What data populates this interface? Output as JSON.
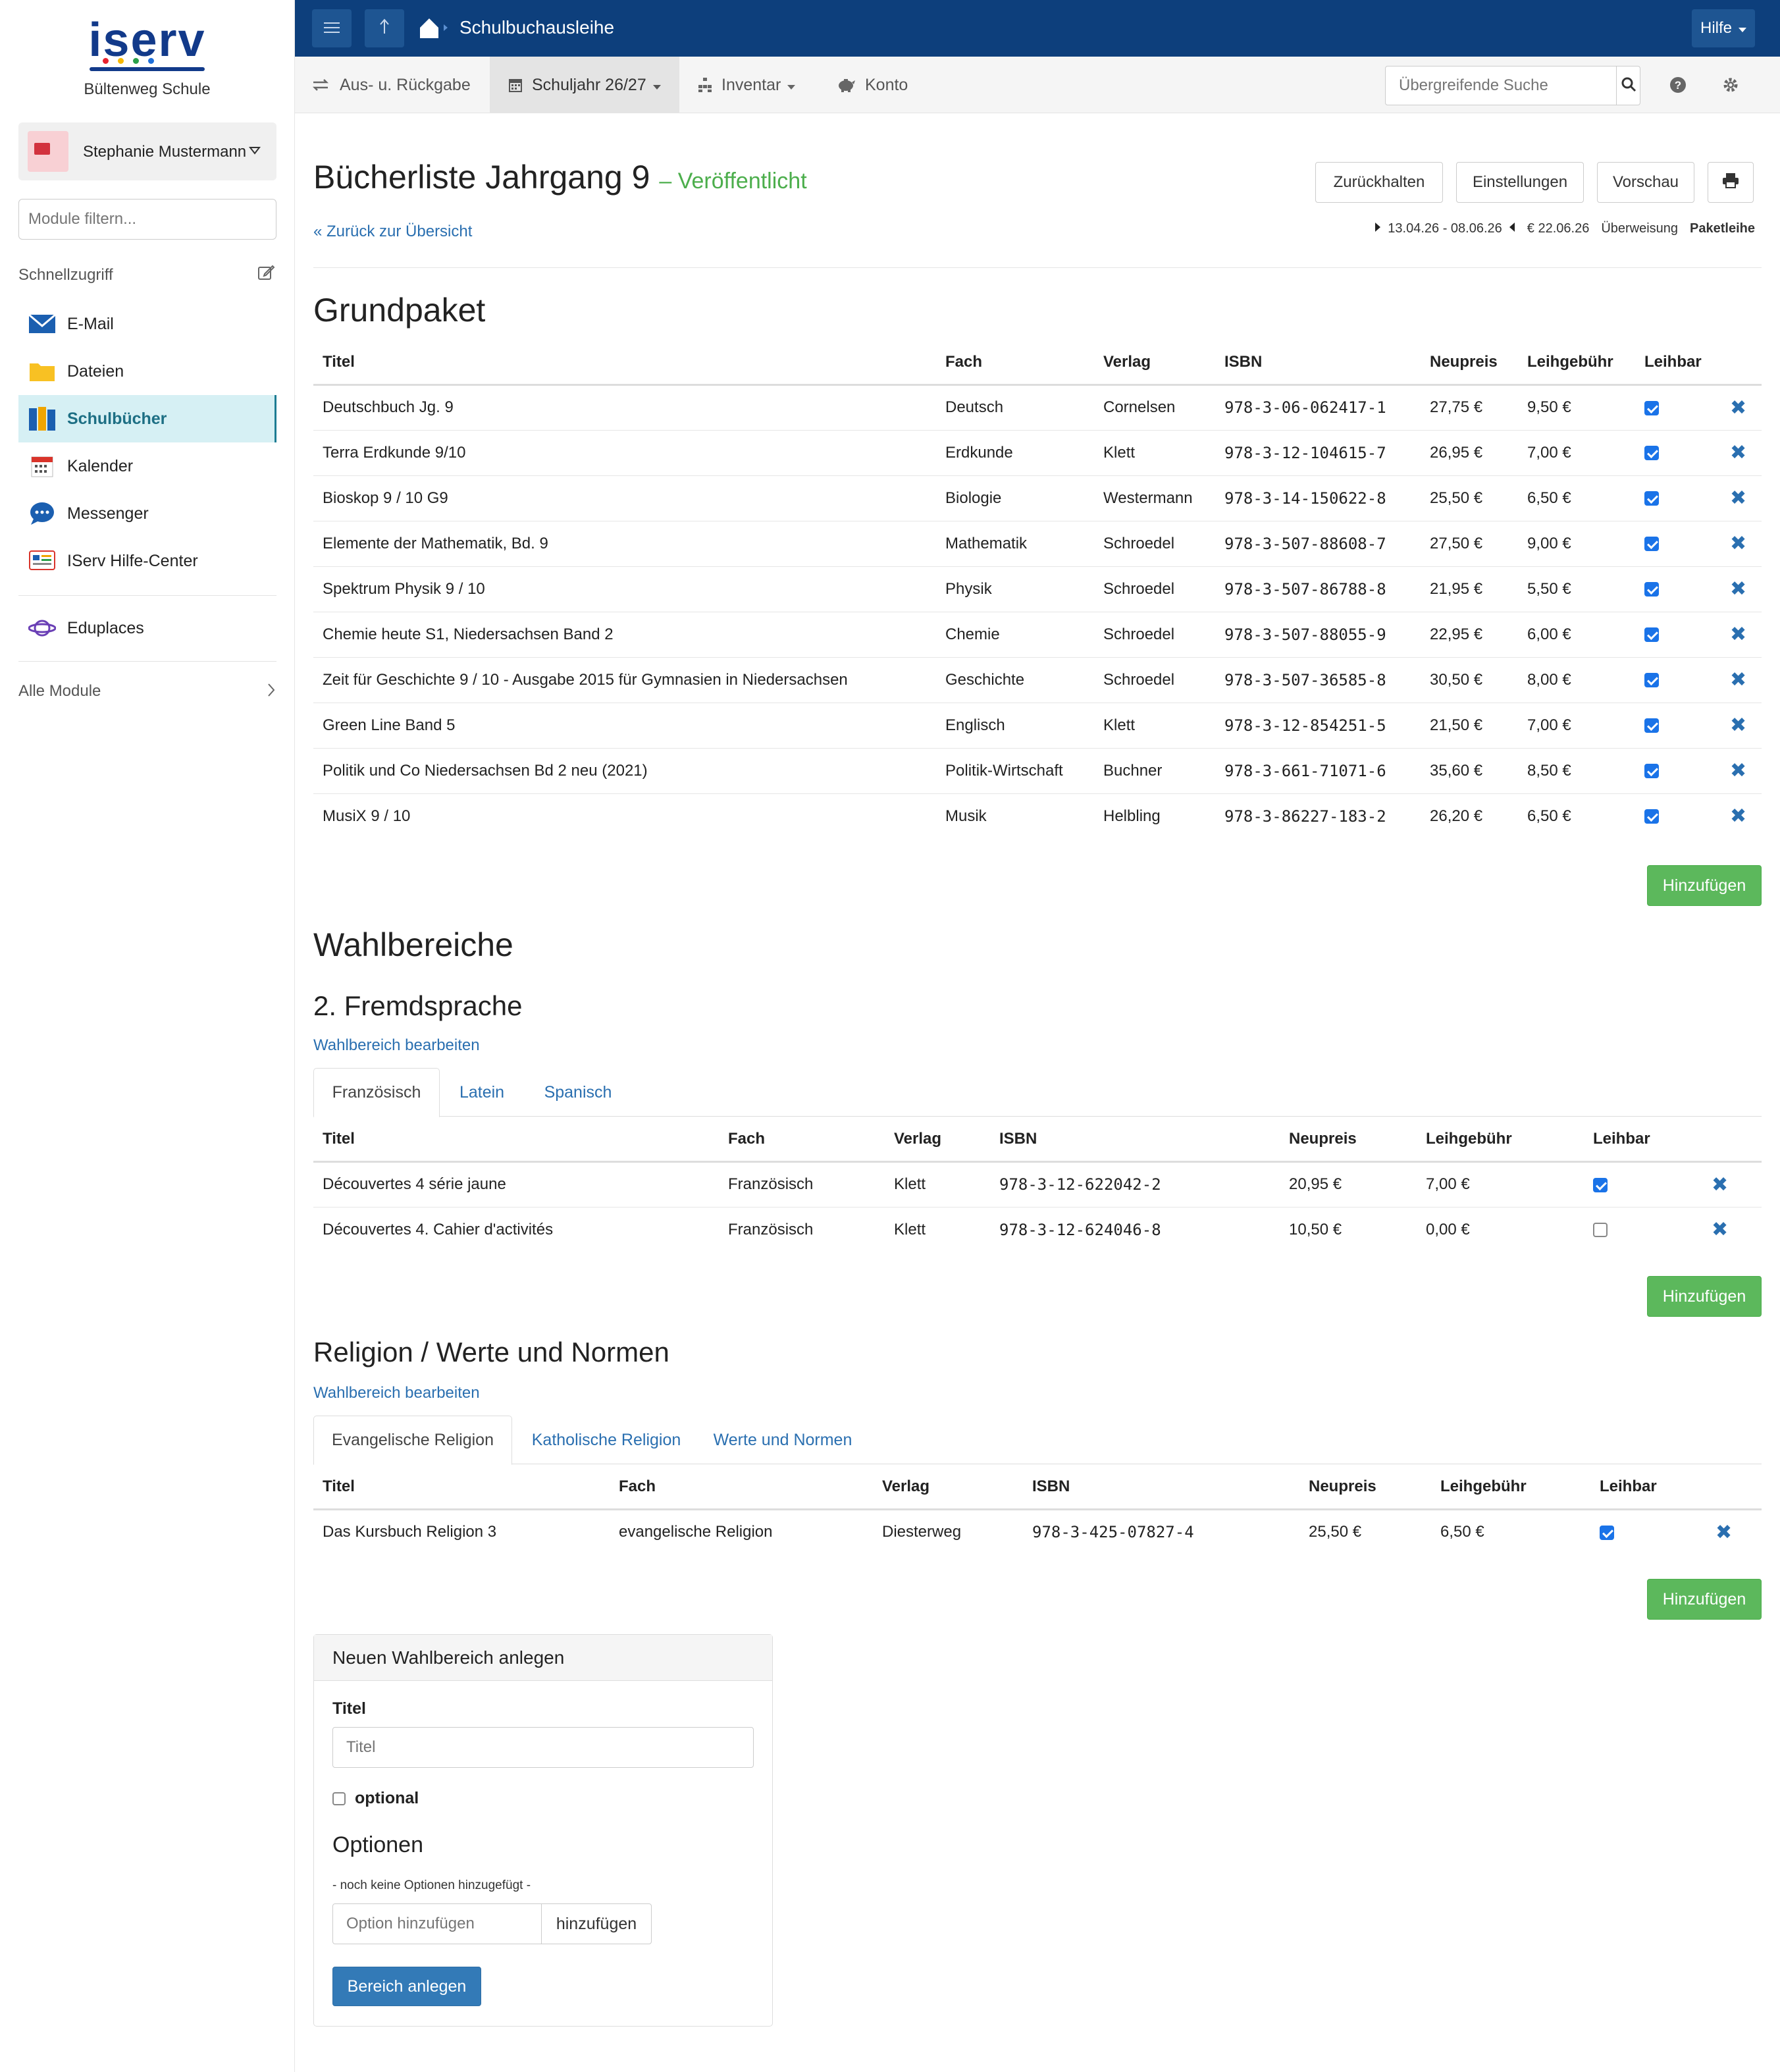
{
  "sidebar": {
    "logo": "iserv",
    "school": "Bültenweg Schule",
    "user_name": "Stephanie Mustermann",
    "module_filter_placeholder": "Module filtern...",
    "quick_label": "Schnellzugriff",
    "items": [
      {
        "label": "E-Mail",
        "icon": "mail-icon",
        "active": false
      },
      {
        "label": "Dateien",
        "icon": "folder-icon",
        "active": false
      },
      {
        "label": "Schulbücher",
        "icon": "books-icon",
        "active": true
      },
      {
        "label": "Kalender",
        "icon": "calendar-icon",
        "active": false
      },
      {
        "label": "Messenger",
        "icon": "chat-icon",
        "active": false
      },
      {
        "label": "IServ Hilfe-Center",
        "icon": "help-center-icon",
        "active": false
      }
    ],
    "eduplaces": "Eduplaces",
    "all_modules": "Alle Module"
  },
  "topbar": {
    "title": "Schulbuchausleihe",
    "help": "Hilfe"
  },
  "subnav": {
    "items": [
      "Aus- u. Rückgabe",
      "Schuljahr 26/27",
      "Inventar",
      "Konto"
    ],
    "search_placeholder": "Übergreifende Suche"
  },
  "header": {
    "title": "Bücherliste Jahrgang 9",
    "status": "– Veröffentlicht",
    "back": "« Zurück zur Übersicht",
    "buttons": [
      "Zurückhalten",
      "Einstellungen",
      "Vorschau"
    ],
    "period": "13.04.26 - 08.06.26",
    "due": "€ 22.06.26",
    "payment": "Überweisung",
    "mode": "Paketleihe"
  },
  "columns": [
    "Titel",
    "Fach",
    "Verlag",
    "ISBN",
    "Neupreis",
    "Leihgebühr",
    "Leihbar"
  ],
  "grundpaket": {
    "heading": "Grundpaket",
    "rows": [
      [
        "Deutschbuch Jg. 9",
        "Deutsch",
        "Cornelsen",
        "978-3-06-062417-1",
        "27,75 €",
        "9,50 €",
        true
      ],
      [
        "Terra Erdkunde 9/10",
        "Erdkunde",
        "Klett",
        "978-3-12-104615-7",
        "26,95 €",
        "7,00 €",
        true
      ],
      [
        "Bioskop 9 / 10 G9",
        "Biologie",
        "Westermann",
        "978-3-14-150622-8",
        "25,50 €",
        "6,50 €",
        true
      ],
      [
        "Elemente der Mathematik, Bd. 9",
        "Mathematik",
        "Schroedel",
        "978-3-507-88608-7",
        "27,50 €",
        "9,00 €",
        true
      ],
      [
        "Spektrum Physik 9 / 10",
        "Physik",
        "Schroedel",
        "978-3-507-86788-8",
        "21,95 €",
        "5,50 €",
        true
      ],
      [
        "Chemie heute S1, Niedersachsen Band 2",
        "Chemie",
        "Schroedel",
        "978-3-507-88055-9",
        "22,95 €",
        "6,00 €",
        true
      ],
      [
        "Zeit für Geschichte 9 / 10 - Ausgabe 2015 für Gymnasien in Niedersachsen",
        "Geschichte",
        "Schroedel",
        "978-3-507-36585-8",
        "30,50 €",
        "8,00 €",
        true
      ],
      [
        "Green Line Band 5",
        "Englisch",
        "Klett",
        "978-3-12-854251-5",
        "21,50 €",
        "7,00 €",
        true
      ],
      [
        "Politik und Co Niedersachsen Bd 2 neu (2021)",
        "Politik-Wirtschaft",
        "Buchner",
        "978-3-661-71071-6",
        "35,60 €",
        "8,50 €",
        true
      ],
      [
        "MusiX 9 / 10",
        "Musik",
        "Helbling",
        "978-3-86227-183-2",
        "26,20 €",
        "6,50 €",
        true
      ]
    ]
  },
  "add_label": "Hinzufügen",
  "wahlbereiche": {
    "heading": "Wahlbereiche",
    "edit_label": "Wahlbereich bearbeiten",
    "groups": [
      {
        "title": "2. Fremdsprache",
        "tabs": [
          "Französisch",
          "Latein",
          "Spanisch"
        ],
        "rows": [
          [
            "Découvertes 4 série jaune",
            "Französisch",
            "Klett",
            "978-3-12-622042-2",
            "20,95 €",
            "7,00 €",
            true
          ],
          [
            "Découvertes 4. Cahier d'activités",
            "Französisch",
            "Klett",
            "978-3-12-624046-8",
            "10,50 €",
            "0,00 €",
            false
          ]
        ]
      },
      {
        "title": "Religion / Werte und Normen",
        "tabs": [
          "Evangelische Religion",
          "Katholische Religion",
          "Werte und Normen"
        ],
        "rows": [
          [
            "Das Kursbuch Religion 3",
            "evangelische Religion",
            "Diesterweg",
            "978-3-425-07827-4",
            "25,50 €",
            "6,50 €",
            true
          ]
        ]
      }
    ]
  },
  "new_area": {
    "heading": "Neuen Wahlbereich anlegen",
    "title_label": "Titel",
    "title_placeholder": "Titel",
    "optional_label": "optional",
    "options_heading": "Optionen",
    "no_options": "- noch keine Optionen hinzugefügt -",
    "option_placeholder": "Option hinzufügen",
    "option_add": "hinzufügen",
    "submit": "Bereich anlegen"
  }
}
